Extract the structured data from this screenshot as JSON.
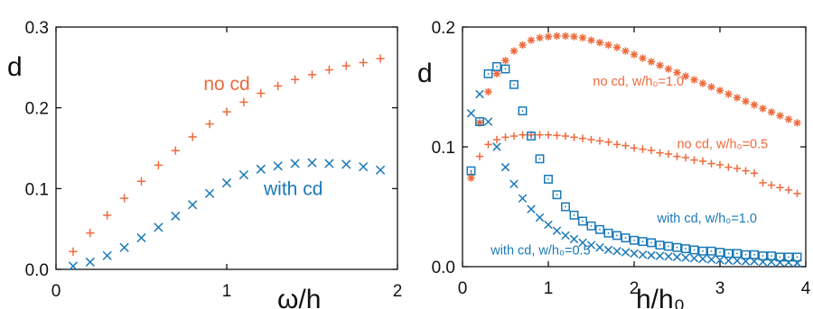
{
  "chart_data": [
    {
      "type": "scatter",
      "xlabel": "ω/h",
      "ylabel": "d",
      "xlim": [
        0,
        2
      ],
      "ylim": [
        0,
        0.3
      ],
      "xticks": [
        "0",
        "1",
        "2"
      ],
      "yticks": [
        "0.0",
        "0.1",
        "0.2",
        "0.3"
      ],
      "grid": false,
      "series": [
        {
          "name": "no cd",
          "marker": "plus",
          "color": "#ee6a3c",
          "x": [
            0.1,
            0.2,
            0.3,
            0.4,
            0.5,
            0.6,
            0.7,
            0.8,
            0.9,
            1.0,
            1.1,
            1.2,
            1.3,
            1.4,
            1.5,
            1.6,
            1.7,
            1.8,
            1.9
          ],
          "y": [
            0.022,
            0.045,
            0.067,
            0.088,
            0.109,
            0.129,
            0.147,
            0.164,
            0.18,
            0.195,
            0.207,
            0.218,
            0.227,
            0.235,
            0.241,
            0.247,
            0.252,
            0.256,
            0.261
          ]
        },
        {
          "name": "with cd",
          "marker": "x",
          "color": "#1a7ab8",
          "x": [
            0.1,
            0.2,
            0.3,
            0.4,
            0.5,
            0.6,
            0.7,
            0.8,
            0.9,
            1.0,
            1.1,
            1.2,
            1.3,
            1.4,
            1.5,
            1.6,
            1.7,
            1.8,
            1.9
          ],
          "y": [
            0.004,
            0.009,
            0.017,
            0.027,
            0.039,
            0.052,
            0.066,
            0.08,
            0.094,
            0.107,
            0.117,
            0.124,
            0.128,
            0.131,
            0.132,
            0.131,
            0.13,
            0.127,
            0.123
          ]
        }
      ],
      "annotations": [
        {
          "text": "no cd",
          "x": 1.0,
          "y": 0.222,
          "color": "#ee6a3c"
        },
        {
          "text": "with cd",
          "x": 1.39,
          "y": 0.092,
          "color": "#1a7ab8"
        }
      ]
    },
    {
      "type": "scatter",
      "xlabel": "h/h₀",
      "ylabel": "d",
      "xlim": [
        0,
        4
      ],
      "ylim": [
        0,
        0.2
      ],
      "xticks": [
        "0",
        "1",
        "2",
        "3",
        "4"
      ],
      "yticks": [
        "0.0",
        "0.1",
        "0.2"
      ],
      "grid": false,
      "series": [
        {
          "name": "no cd, w/h₀=1.0",
          "marker": "asterisk",
          "color": "#ee6a3c",
          "x": [
            0.1,
            0.2,
            0.3,
            0.4,
            0.5,
            0.6,
            0.7,
            0.8,
            0.9,
            1.0,
            1.1,
            1.2,
            1.3,
            1.4,
            1.5,
            1.6,
            1.7,
            1.8,
            1.9,
            2.0,
            2.1,
            2.2,
            2.3,
            2.4,
            2.5,
            2.6,
            2.7,
            2.8,
            2.9,
            3.0,
            3.1,
            3.2,
            3.3,
            3.4,
            3.5,
            3.6,
            3.7,
            3.8,
            3.9
          ],
          "y": [
            0.074,
            0.12,
            0.146,
            0.161,
            0.172,
            0.18,
            0.185,
            0.189,
            0.191,
            0.192,
            0.1925,
            0.1925,
            0.192,
            0.191,
            0.189,
            0.187,
            0.185,
            0.183,
            0.18,
            0.177,
            0.174,
            0.171,
            0.168,
            0.165,
            0.162,
            0.159,
            0.156,
            0.153,
            0.15,
            0.147,
            0.144,
            0.141,
            0.138,
            0.135,
            0.132,
            0.129,
            0.126,
            0.123,
            0.12
          ]
        },
        {
          "name": "no cd, w/h₀=0.5",
          "marker": "plus",
          "color": "#ee6a3c",
          "x": [
            0.1,
            0.2,
            0.3,
            0.4,
            0.5,
            0.6,
            0.7,
            0.8,
            0.9,
            1.0,
            1.1,
            1.2,
            1.3,
            1.4,
            1.5,
            1.6,
            1.7,
            1.8,
            1.9,
            2.0,
            2.1,
            2.2,
            2.3,
            2.4,
            2.5,
            2.6,
            2.7,
            2.8,
            2.9,
            3.0,
            3.1,
            3.2,
            3.3,
            3.4,
            3.5,
            3.6,
            3.7,
            3.8,
            3.9
          ],
          "y": [
            0.077,
            0.092,
            0.102,
            0.106,
            0.108,
            0.109,
            0.11,
            0.11,
            0.11,
            0.11,
            0.1095,
            0.109,
            0.108,
            0.107,
            0.106,
            0.105,
            0.104,
            0.102,
            0.101,
            0.099,
            0.098,
            0.097,
            0.095,
            0.094,
            0.092,
            0.091,
            0.089,
            0.088,
            0.086,
            0.085,
            0.083,
            0.082,
            0.08,
            0.078,
            0.07,
            0.068,
            0.066,
            0.064,
            0.061
          ]
        },
        {
          "name": "with cd, w/h₀=1.0",
          "marker": "square-dot",
          "color": "#1a7ab8",
          "x": [
            0.1,
            0.2,
            0.3,
            0.4,
            0.5,
            0.6,
            0.7,
            0.8,
            0.9,
            1.0,
            1.1,
            1.2,
            1.3,
            1.4,
            1.5,
            1.6,
            1.7,
            1.8,
            1.9,
            2.0,
            2.1,
            2.2,
            2.3,
            2.4,
            2.5,
            2.6,
            2.7,
            2.8,
            2.9,
            3.0,
            3.1,
            3.2,
            3.3,
            3.4,
            3.5,
            3.6,
            3.7,
            3.8,
            3.9
          ],
          "y": [
            0.08,
            0.121,
            0.161,
            0.167,
            0.165,
            0.152,
            0.13,
            0.109,
            0.09,
            0.073,
            0.06,
            0.05,
            0.043,
            0.038,
            0.034,
            0.031,
            0.028,
            0.026,
            0.024,
            0.022,
            0.021,
            0.02,
            0.018,
            0.017,
            0.016,
            0.015,
            0.014,
            0.013,
            0.013,
            0.012,
            0.011,
            0.011,
            0.01,
            0.01,
            0.009,
            0.009,
            0.008,
            0.008,
            0.008
          ]
        },
        {
          "name": "with cd, w/h₀=0.5",
          "marker": "x",
          "color": "#1a7ab8",
          "x": [
            0.1,
            0.2,
            0.3,
            0.4,
            0.5,
            0.6,
            0.7,
            0.8,
            0.9,
            1.0,
            1.1,
            1.2,
            1.3,
            1.4,
            1.5,
            1.6,
            1.7,
            1.8,
            1.9,
            2.0,
            2.1,
            2.2,
            2.3,
            2.4,
            2.5,
            2.6,
            2.7,
            2.8,
            2.9,
            3.0,
            3.1,
            3.2,
            3.3,
            3.4,
            3.5,
            3.6,
            3.7,
            3.8,
            3.9
          ],
          "y": [
            0.128,
            0.144,
            0.121,
            0.1,
            0.083,
            0.069,
            0.057,
            0.048,
            0.041,
            0.035,
            0.03,
            0.026,
            0.023,
            0.02,
            0.018,
            0.016,
            0.014,
            0.013,
            0.012,
            0.011,
            0.01,
            0.0095,
            0.009,
            0.0085,
            0.008,
            0.0075,
            0.007,
            0.0065,
            0.006,
            0.0055,
            0.005,
            0.005,
            0.0045,
            0.0045,
            0.004,
            0.004,
            0.0035,
            0.0035,
            0.003
          ]
        }
      ],
      "annotations": [
        {
          "text": "no cd, w/h₀=1.0",
          "x": 2.05,
          "y": 0.151,
          "color": "#ee6a3c"
        },
        {
          "text": "no cd, w/h₀=0.5",
          "x": 3.03,
          "y": 0.099,
          "color": "#ee6a3c"
        },
        {
          "text": "with cd, w/h₀=1.0",
          "x": 2.85,
          "y": 0.037,
          "color": "#1a7ab8"
        },
        {
          "text": "with cd, w/h₀=0.5",
          "x": 0.91,
          "y": 0.01,
          "color": "#1a7ab8"
        }
      ]
    }
  ]
}
